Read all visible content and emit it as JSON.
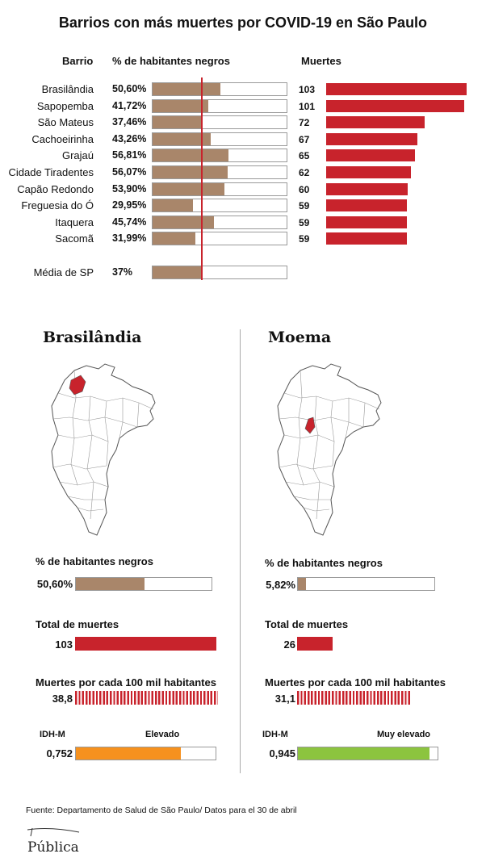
{
  "title": "Barrios con más muertes por COVID-19 en São Paulo",
  "headers": {
    "barrio": "Barrio",
    "pct": "% de habitantes negros",
    "deaths": "Muertes"
  },
  "colors": {
    "brown": "#a9866a",
    "red": "#c8232c",
    "orange": "#f6911e",
    "green": "#8cc43f"
  },
  "chart_data": [
    {
      "type": "bar",
      "categories": [
        "Brasilândia",
        "Sapopemba",
        "São Mateus",
        "Cachoeirinha",
        "Grajaú",
        "Cidade Tiradentes",
        "Capão Redondo",
        "Freguesia do Ó",
        "Itaquera",
        "Sacomã"
      ],
      "series": [
        {
          "name": "% de habitantes negros",
          "labels": [
            "50,60%",
            "41,72%",
            "37,46%",
            "43,26%",
            "56,81%",
            "56,07%",
            "53,90%",
            "29,95%",
            "45,74%",
            "31,99%"
          ],
          "values": [
            50.6,
            41.72,
            37.46,
            43.26,
            56.81,
            56.07,
            53.9,
            29.95,
            45.74,
            31.99
          ]
        },
        {
          "name": "Muertes",
          "values": [
            103,
            101,
            72,
            67,
            65,
            62,
            60,
            59,
            59,
            59
          ]
        }
      ],
      "reference": {
        "label": "Média de SP",
        "value_label": "37%",
        "value": 37
      }
    }
  ],
  "panels": [
    {
      "name": "Brasilândia",
      "pct_label": "% de habitantes negros",
      "pct_text": "50,60%",
      "pct_value": 50.6,
      "deaths_label": "Total de muertes",
      "deaths_text": "103",
      "deaths_value": 103,
      "rate_label": "Muertes por cada 100 mil habitantes",
      "rate_text": "38,8",
      "rate_value": 38.8,
      "idh_label": "IDH-M",
      "idh_level": "Elevado",
      "idh_text": "0,752",
      "idh_value": 0.752,
      "idh_color": "#f6911e"
    },
    {
      "name": "Moema",
      "pct_label": "% de habitantes negros",
      "pct_text": "5,82%",
      "pct_value": 5.82,
      "deaths_label": "Total de muertes",
      "deaths_text": "26",
      "deaths_value": 26,
      "rate_label": "Muertes por cada 100 mil habitantes",
      "rate_text": "31,1",
      "rate_value": 31.1,
      "idh_label": "IDH-M",
      "idh_level": "Muy elevado",
      "idh_text": "0,945",
      "idh_value": 0.945,
      "idh_color": "#8cc43f"
    }
  ],
  "source": "Fuente: Departamento de Salud de São Paulo/ Datos para el 30 de abril",
  "logo": "Pública"
}
